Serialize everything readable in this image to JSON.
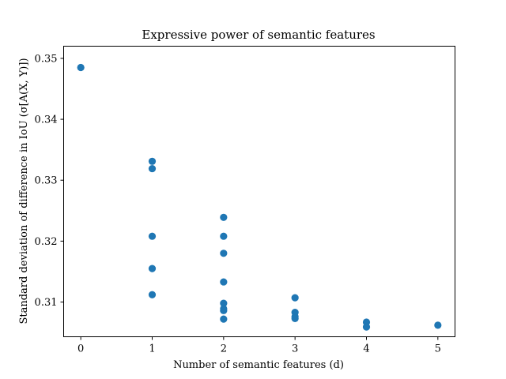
{
  "chart_data": {
    "type": "scatter",
    "title": "Expressive power of semantic features",
    "xlabel": "Number of semantic features (d)",
    "ylabel": "Standard deviation of difference in IoU (σ[A(X, Y)])",
    "xlim": [
      -0.24,
      5.24
    ],
    "ylim": [
      0.3043,
      0.352
    ],
    "xticks": [
      0,
      1,
      2,
      3,
      4,
      5
    ],
    "yticks": [
      0.31,
      0.32,
      0.33,
      0.34,
      0.35
    ],
    "ytick_labels": [
      "0.31",
      "0.32",
      "0.33",
      "0.34",
      "0.35"
    ],
    "grid": false,
    "marker_color": "#1f77b4",
    "points": [
      {
        "x": 0,
        "y": 0.3485
      },
      {
        "x": 1,
        "y": 0.3331
      },
      {
        "x": 1,
        "y": 0.3319
      },
      {
        "x": 1,
        "y": 0.3208
      },
      {
        "x": 1,
        "y": 0.3155
      },
      {
        "x": 1,
        "y": 0.3112
      },
      {
        "x": 2,
        "y": 0.3239
      },
      {
        "x": 2,
        "y": 0.3208
      },
      {
        "x": 2,
        "y": 0.318
      },
      {
        "x": 2,
        "y": 0.3133
      },
      {
        "x": 2,
        "y": 0.3098
      },
      {
        "x": 2,
        "y": 0.3089
      },
      {
        "x": 2,
        "y": 0.3086
      },
      {
        "x": 2,
        "y": 0.3072
      },
      {
        "x": 3,
        "y": 0.3107
      },
      {
        "x": 3,
        "y": 0.3083
      },
      {
        "x": 3,
        "y": 0.3076
      },
      {
        "x": 3,
        "y": 0.3073
      },
      {
        "x": 4,
        "y": 0.3067
      },
      {
        "x": 4,
        "y": 0.3059
      },
      {
        "x": 5,
        "y": 0.3062
      }
    ]
  }
}
